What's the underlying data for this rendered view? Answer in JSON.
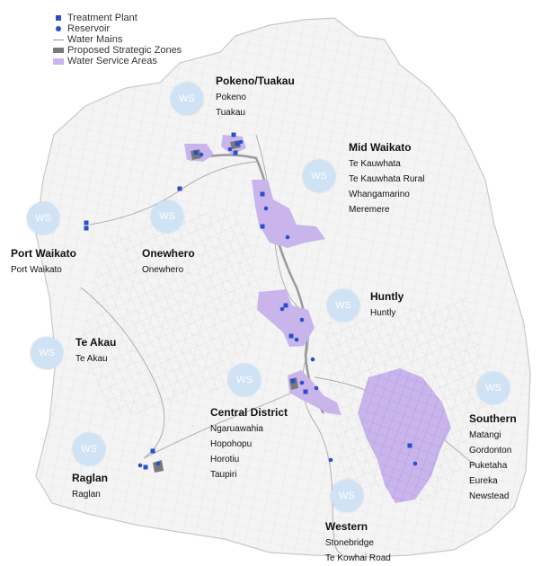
{
  "legend": {
    "items": [
      {
        "label": "Treatment Plant",
        "symbol": "blue-square-icon",
        "color": "#2b4fc7"
      },
      {
        "label": "Reservoir",
        "symbol": "blue-dot-icon",
        "color": "#2b4fc7"
      },
      {
        "label": "Water Mains",
        "symbol": "grey-line-icon",
        "color": "#999999"
      },
      {
        "label": "Proposed Strategic Zones",
        "symbol": "grey-fill-icon",
        "color": "#7a7a7a"
      },
      {
        "label": "Water Service Areas",
        "symbol": "purple-fill-icon",
        "color": "#c9b5ec"
      }
    ]
  },
  "ws_label": "WS",
  "zones": [
    {
      "id": "pokeno-tuakau",
      "title": "Pokeno/Tuakau",
      "places": [
        "Pokeno",
        "Tuakau"
      ]
    },
    {
      "id": "mid-waikato",
      "title": "Mid Waikato",
      "places": [
        "Te Kauwhata",
        "Te Kauwhata Rural",
        "Whangamarino",
        "Meremere"
      ]
    },
    {
      "id": "port-waikato",
      "title": "Port Waikato",
      "places": [
        "Port Waikato"
      ]
    },
    {
      "id": "onewhero",
      "title": "Onewhero",
      "places": [
        "Onewhero"
      ]
    },
    {
      "id": "huntly",
      "title": "Huntly",
      "places": [
        "Huntly"
      ]
    },
    {
      "id": "te-akau",
      "title": "Te Akau",
      "places": [
        "Te Akau"
      ]
    },
    {
      "id": "central-district",
      "title": "Central District",
      "places": [
        "Ngaruawahia",
        "Hopohopu",
        "Horotiu",
        "Taupiri"
      ]
    },
    {
      "id": "southern",
      "title": "Southern",
      "places": [
        "Matangi",
        "Gordonton",
        "Puketaha",
        "Eureka",
        "Newstead"
      ]
    },
    {
      "id": "raglan",
      "title": "Raglan",
      "places": [
        "Raglan"
      ]
    },
    {
      "id": "western",
      "title": "Western",
      "places": [
        "Stonebridge",
        "Te Kowhai Road"
      ]
    }
  ],
  "colors": {
    "district_fill": "#f4f4f4",
    "district_outline": "#c8c8c8",
    "service_area": "#c9b5ec",
    "strategic_zone": "#7a7a7a",
    "asset": "#2b4fc7",
    "ws_circle": "#cfe3f5"
  }
}
